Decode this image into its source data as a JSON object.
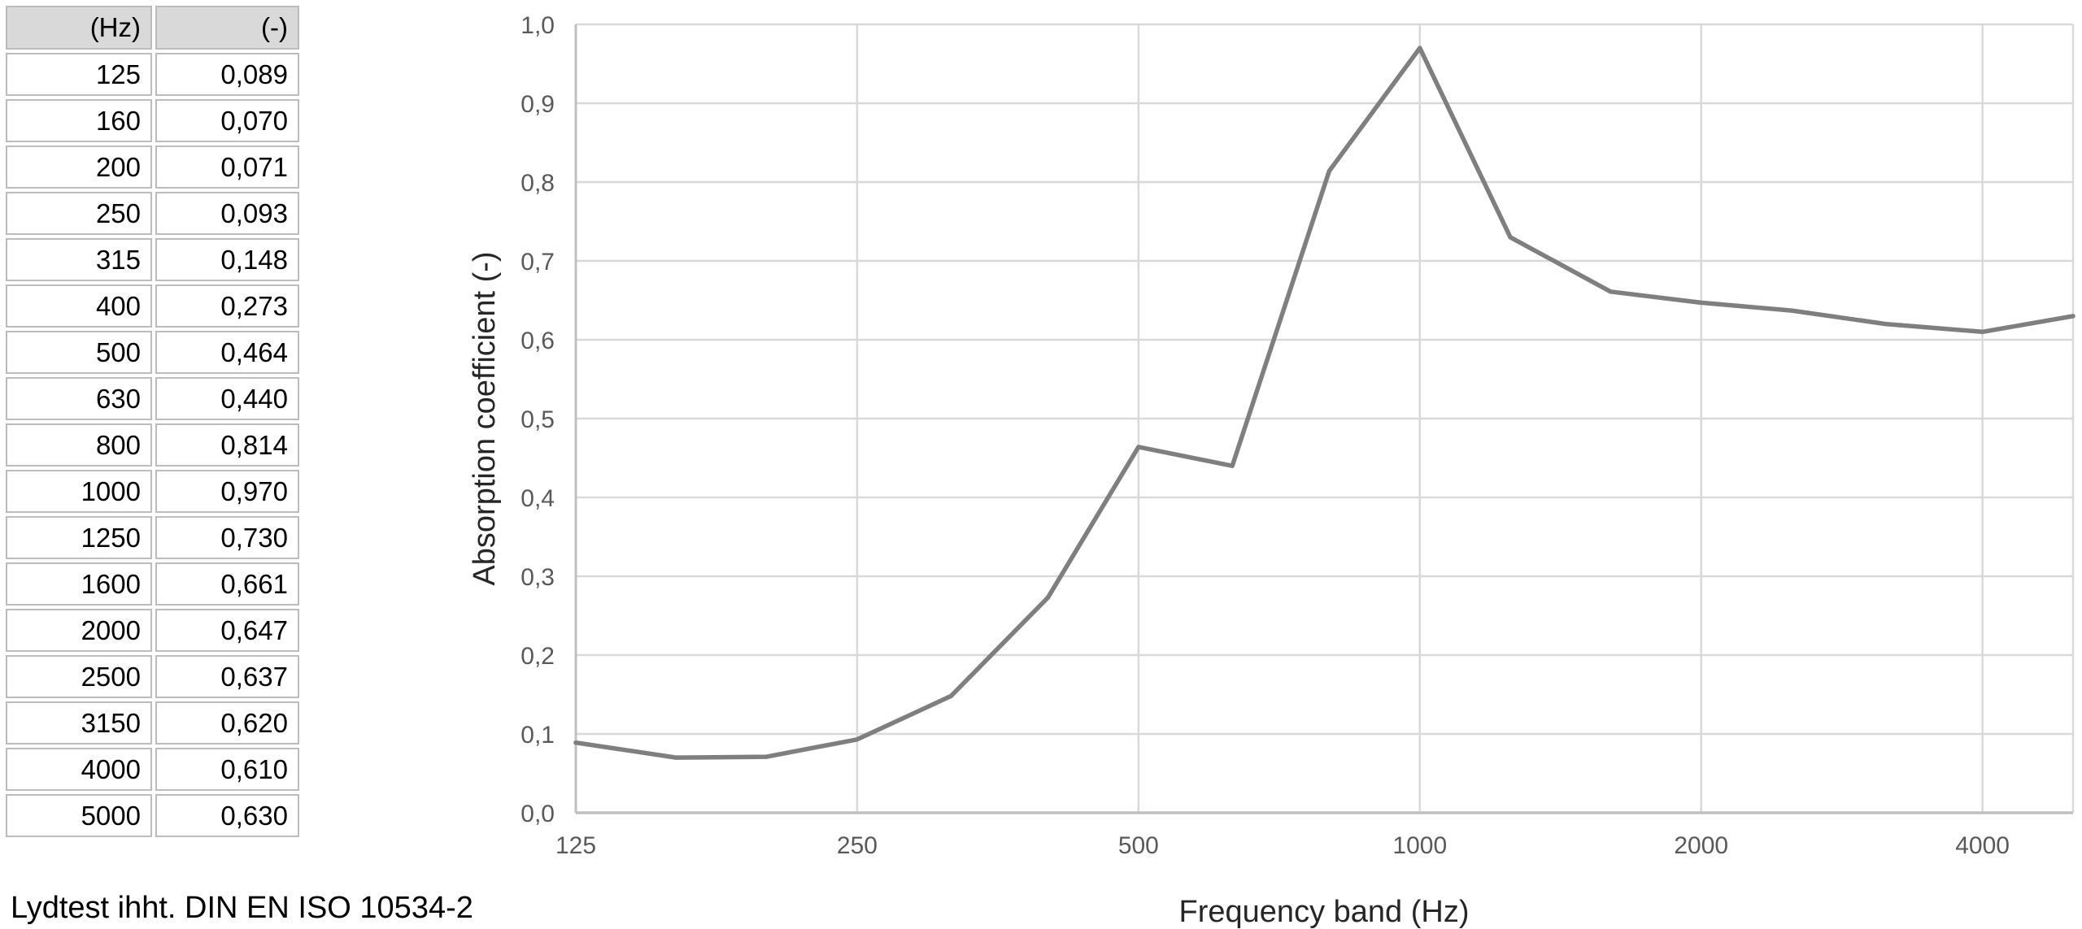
{
  "table": {
    "headers": [
      "(Hz)",
      "(-)"
    ],
    "rows": [
      [
        "125",
        "0,089"
      ],
      [
        "160",
        "0,070"
      ],
      [
        "200",
        "0,071"
      ],
      [
        "250",
        "0,093"
      ],
      [
        "315",
        "0,148"
      ],
      [
        "400",
        "0,273"
      ],
      [
        "500",
        "0,464"
      ],
      [
        "630",
        "0,440"
      ],
      [
        "800",
        "0,814"
      ],
      [
        "1000",
        "0,970"
      ],
      [
        "1250",
        "0,730"
      ],
      [
        "1600",
        "0,661"
      ],
      [
        "2000",
        "0,647"
      ],
      [
        "2500",
        "0,637"
      ],
      [
        "3150",
        "0,620"
      ],
      [
        "4000",
        "0,610"
      ],
      [
        "5000",
        "0,630"
      ]
    ]
  },
  "caption": "Lydtest ihht. DIN EN ISO 10534-2",
  "chart_data": {
    "type": "line",
    "title": "",
    "xlabel": "Frequency band (Hz)",
    "ylabel": "Absorption coefficient (-)",
    "xscale": "log",
    "xlim": [
      125,
      5000
    ],
    "ylim": [
      0,
      1
    ],
    "x": [
      125,
      160,
      200,
      250,
      315,
      400,
      500,
      630,
      800,
      1000,
      1250,
      1600,
      2000,
      2500,
      3150,
      4000,
      5000
    ],
    "values": [
      0.089,
      0.07,
      0.071,
      0.093,
      0.148,
      0.273,
      0.464,
      0.44,
      0.814,
      0.97,
      0.73,
      0.661,
      0.647,
      0.637,
      0.62,
      0.61,
      0.63
    ],
    "xticks": {
      "values": [
        125,
        250,
        500,
        1000,
        2000,
        4000
      ],
      "labels": [
        "125",
        "250",
        "500",
        "1000",
        "2000",
        "4000"
      ]
    },
    "yticks": {
      "values": [
        0,
        0.1,
        0.2,
        0.3,
        0.4,
        0.5,
        0.6,
        0.7,
        0.8,
        0.9,
        1.0
      ],
      "labels": [
        "0,0",
        "0,1",
        "0,2",
        "0,3",
        "0,4",
        "0,5",
        "0,6",
        "0,7",
        "0,8",
        "0,9",
        "1,0"
      ]
    },
    "grid": true,
    "legend": false,
    "colors": {
      "series": "#7f7f7f",
      "grid": "#d9d9d9",
      "axis": "#c0c0c0",
      "tick_label": "#595959",
      "title": "#262626"
    }
  }
}
